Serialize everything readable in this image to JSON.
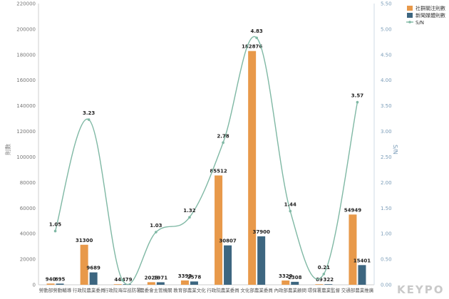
{
  "chart_data": {
    "type": "bar",
    "categories": [
      "勞動部勞動輔導",
      "行政院農業委員",
      "行政院海岸巡防署",
      "農委會主管機關",
      "教育部農業文化",
      "行政院農業委員",
      "文化部農業委員",
      "內政部農業顧問",
      "環保署農業監督",
      "交通部農業推廣"
    ],
    "series": [
      {
        "name": "社群關注則數",
        "values": [
          940,
          31300,
          44,
          2025,
          3393,
          85512,
          182876,
          3329,
          69,
          54949
        ],
        "color": "#e8994a",
        "axis": "left"
      },
      {
        "name": "新聞媒體則數",
        "values": [
          895,
          9689,
          479,
          1971,
          2578,
          30807,
          37900,
          2308,
          322,
          15401
        ],
        "color": "#3d6680",
        "axis": "left"
      },
      {
        "name": "S/N",
        "values": [
          1.05,
          3.23,
          0.09,
          1.03,
          1.32,
          2.78,
          4.83,
          1.44,
          0.21,
          3.57
        ],
        "color": "#7fb8a4",
        "axis": "right"
      }
    ],
    "sn_labels": [
      "1.05",
      "3.23",
      "",
      "1.03",
      "1.32",
      "2.78",
      "4.83",
      "1.44",
      "0.21",
      "3.57"
    ],
    "ylabel_left": "則數",
    "ylabel_right": "S/N",
    "ylim_left": [
      0,
      220000
    ],
    "yticks_left": [
      0,
      20000,
      40000,
      60000,
      80000,
      100000,
      120000,
      140000,
      160000,
      180000,
      200000,
      220000
    ],
    "ylim_right": [
      0,
      5.5
    ],
    "yticks_right": [
      "0.00",
      "0.50",
      "1.00",
      "1.50",
      "2.00",
      "2.50",
      "3.00",
      "3.50",
      "4.00",
      "4.50",
      "5.00",
      "5.50"
    ],
    "grid": false,
    "legend_position": "top-right"
  },
  "watermark": "KEYPO"
}
